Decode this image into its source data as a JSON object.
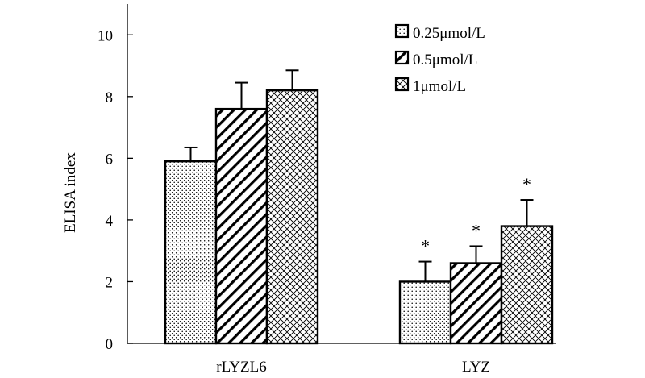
{
  "chart_data": {
    "type": "bar",
    "title": "",
    "xlabel": "",
    "ylabel": "ELISA index",
    "ylim": [
      0,
      11
    ],
    "yticks": [
      0,
      2,
      4,
      6,
      8,
      10
    ],
    "categories": [
      "rLYZL6",
      "LYZ"
    ],
    "series": [
      {
        "name": "0.25μmol/L",
        "pattern": "dots",
        "values": [
          5.9,
          2.0
        ],
        "errors": [
          0.45,
          0.65
        ],
        "significance": [
          "",
          "*"
        ]
      },
      {
        "name": "0.5μmol/L",
        "pattern": "diagonal",
        "values": [
          7.6,
          2.6
        ],
        "errors": [
          0.85,
          0.55
        ],
        "significance": [
          "",
          "*"
        ]
      },
      {
        "name": "1μmol/L",
        "pattern": "crosshatch",
        "values": [
          8.2,
          3.8
        ],
        "errors": [
          0.65,
          0.85
        ],
        "significance": [
          "",
          "*"
        ]
      }
    ],
    "legend_position": "top-right",
    "grid": false,
    "colors": {
      "ink": "#000000",
      "fill": "#ffffff"
    }
  }
}
